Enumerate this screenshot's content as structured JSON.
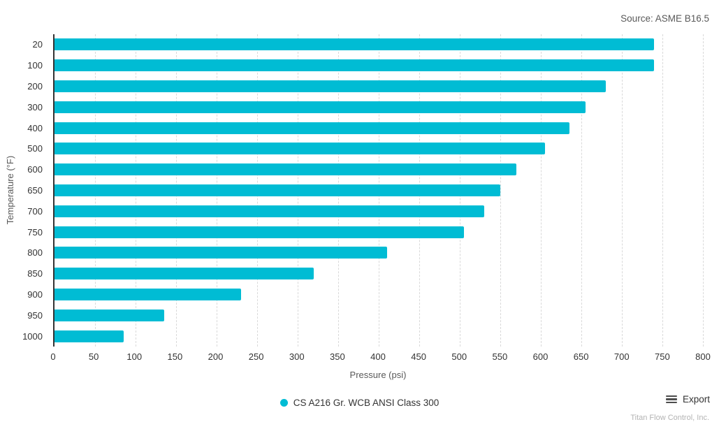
{
  "source_label": "Source: ASME B16.5",
  "chart_data": {
    "type": "bar",
    "orientation": "horizontal",
    "categories": [
      "20",
      "100",
      "200",
      "300",
      "400",
      "500",
      "600",
      "650",
      "700",
      "750",
      "800",
      "850",
      "900",
      "950",
      "1000"
    ],
    "values": [
      740,
      740,
      680,
      655,
      635,
      605,
      570,
      550,
      530,
      505,
      410,
      320,
      230,
      135,
      85
    ],
    "series_name": "CS A216 Gr. WCB ANSI Class 300",
    "xlabel": "Pressure (psi)",
    "ylabel": "Temperature (°F)",
    "xlim": [
      0,
      800
    ],
    "x_ticks": [
      0,
      50,
      100,
      150,
      200,
      250,
      300,
      350,
      400,
      450,
      500,
      550,
      600,
      650,
      700,
      750,
      800
    ],
    "grid": "vertical-dashed",
    "legend_position": "bottom-center",
    "bar_color": "#00BCD4",
    "gridline_color": "#d9d9d9",
    "axis_line_color": "#333333"
  },
  "legend": {
    "label": "CS A216 Gr. WCB ANSI Class 300",
    "marker_color": "#00BCD4"
  },
  "footer": {
    "export_label": "Export",
    "attribution": "Titan Flow Control, Inc."
  }
}
